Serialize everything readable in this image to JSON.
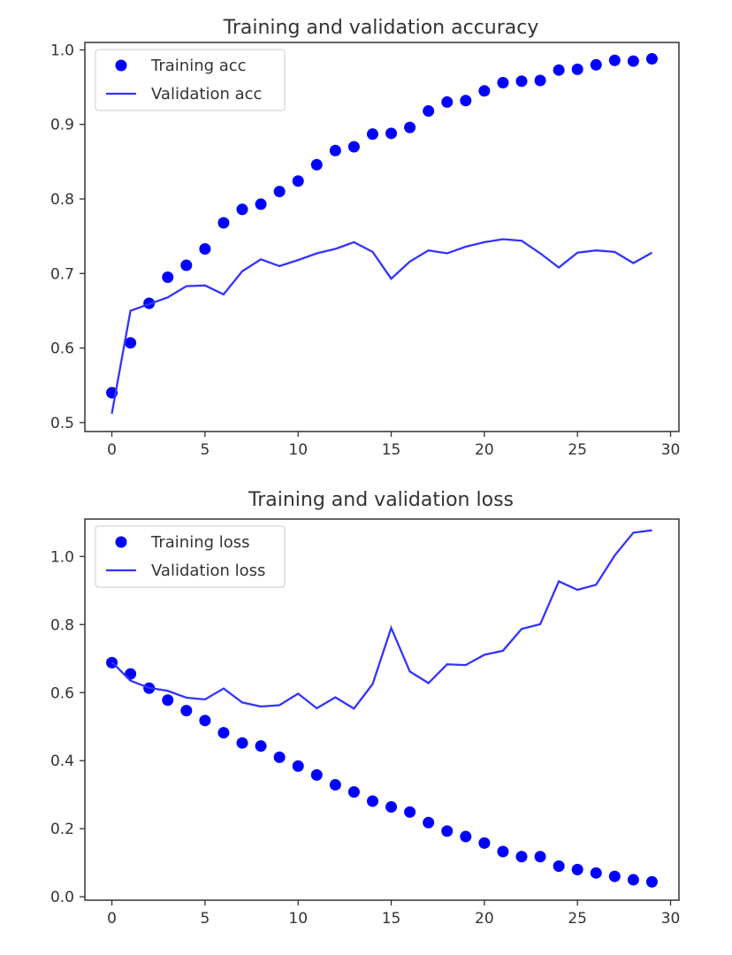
{
  "chart_data": [
    {
      "type": "scatter+line",
      "title": "Training and validation accuracy",
      "xlabel": "",
      "ylabel": "",
      "xlim": [
        -1.45,
        30.45
      ],
      "ylim": [
        0.488,
        1.01
      ],
      "xticks": [
        0,
        5,
        10,
        15,
        20,
        25,
        30
      ],
      "yticks": [
        0.5,
        0.6,
        0.7,
        0.8,
        0.9,
        1.0
      ],
      "ytick_labels": [
        "0.5",
        "0.6",
        "0.7",
        "0.8",
        "0.9",
        "1.0"
      ],
      "grid": false,
      "legend_position": "upper-left",
      "series": [
        {
          "name": "Training acc",
          "style": "dots",
          "color": "#0000ff",
          "x": [
            0,
            1,
            2,
            3,
            4,
            5,
            6,
            7,
            8,
            9,
            10,
            11,
            12,
            13,
            14,
            15,
            16,
            17,
            18,
            19,
            20,
            21,
            22,
            23,
            24,
            25,
            26,
            27,
            28,
            29
          ],
          "values": [
            0.54,
            0.607,
            0.66,
            0.695,
            0.711,
            0.733,
            0.768,
            0.786,
            0.793,
            0.81,
            0.824,
            0.846,
            0.865,
            0.87,
            0.887,
            0.888,
            0.896,
            0.918,
            0.93,
            0.932,
            0.945,
            0.956,
            0.958,
            0.959,
            0.973,
            0.974,
            0.98,
            0.986,
            0.985,
            0.988
          ]
        },
        {
          "name": "Validation acc",
          "style": "line",
          "color": "#3333ff",
          "x": [
            0,
            1,
            2,
            3,
            4,
            5,
            6,
            7,
            8,
            9,
            10,
            11,
            12,
            13,
            14,
            15,
            16,
            17,
            18,
            19,
            20,
            21,
            22,
            23,
            24,
            25,
            26,
            27,
            28,
            29
          ],
          "values": [
            0.512,
            0.65,
            0.659,
            0.668,
            0.683,
            0.684,
            0.672,
            0.703,
            0.719,
            0.71,
            0.718,
            0.727,
            0.733,
            0.742,
            0.729,
            0.693,
            0.716,
            0.731,
            0.727,
            0.736,
            0.742,
            0.746,
            0.744,
            0.727,
            0.708,
            0.728,
            0.731,
            0.729,
            0.714,
            0.728
          ]
        }
      ]
    },
    {
      "type": "scatter+line",
      "title": "Training and validation loss",
      "xlabel": "",
      "ylabel": "",
      "xlim": [
        -1.45,
        30.45
      ],
      "ylim": [
        -0.01,
        1.11
      ],
      "xticks": [
        0,
        5,
        10,
        15,
        20,
        25,
        30
      ],
      "yticks": [
        0.0,
        0.2,
        0.4,
        0.6,
        0.8,
        1.0
      ],
      "ytick_labels": [
        "0.0",
        "0.2",
        "0.4",
        "0.6",
        "0.8",
        "1.0"
      ],
      "grid": false,
      "legend_position": "upper-left",
      "series": [
        {
          "name": "Training loss",
          "style": "dots",
          "color": "#0000ff",
          "x": [
            0,
            1,
            2,
            3,
            4,
            5,
            6,
            7,
            8,
            9,
            10,
            11,
            12,
            13,
            14,
            15,
            16,
            17,
            18,
            19,
            20,
            21,
            22,
            23,
            24,
            25,
            26,
            27,
            28,
            29
          ],
          "values": [
            0.688,
            0.655,
            0.613,
            0.578,
            0.547,
            0.518,
            0.482,
            0.452,
            0.443,
            0.41,
            0.384,
            0.358,
            0.329,
            0.308,
            0.281,
            0.264,
            0.249,
            0.218,
            0.193,
            0.177,
            0.158,
            0.133,
            0.118,
            0.118,
            0.09,
            0.08,
            0.07,
            0.06,
            0.05,
            0.044
          ]
        },
        {
          "name": "Validation loss",
          "style": "line",
          "color": "#3333ff",
          "x": [
            0,
            1,
            2,
            3,
            4,
            5,
            6,
            7,
            8,
            9,
            10,
            11,
            12,
            13,
            14,
            15,
            16,
            17,
            18,
            19,
            20,
            21,
            22,
            23,
            24,
            25,
            26,
            27,
            28,
            29
          ],
          "values": [
            0.69,
            0.635,
            0.614,
            0.605,
            0.585,
            0.58,
            0.612,
            0.571,
            0.559,
            0.563,
            0.597,
            0.554,
            0.586,
            0.553,
            0.625,
            0.79,
            0.662,
            0.628,
            0.683,
            0.681,
            0.711,
            0.723,
            0.787,
            0.801,
            0.927,
            0.902,
            0.917,
            1.003,
            1.07,
            1.077
          ]
        }
      ]
    }
  ]
}
